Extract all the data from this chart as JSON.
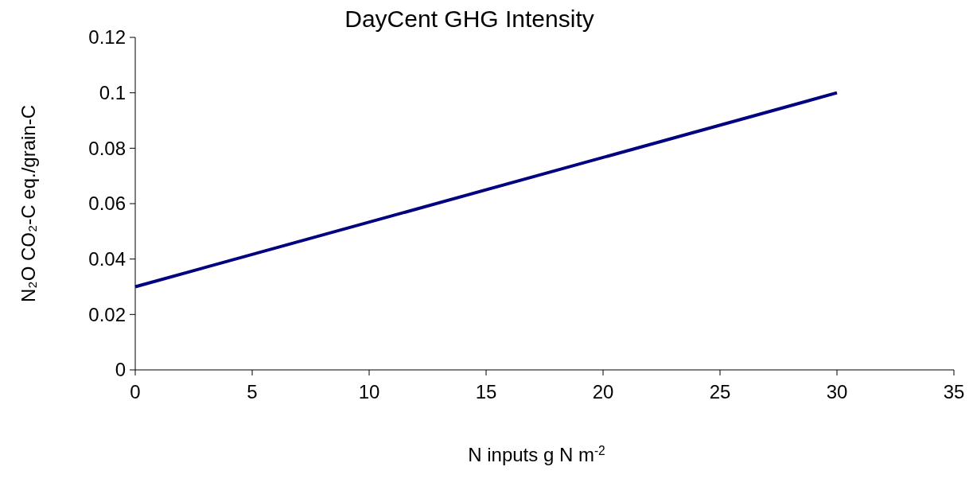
{
  "chart_data": {
    "type": "line",
    "title": "DayCent GHG Intensity",
    "xlabel": "N inputs g N m$^{-2}$",
    "ylabel": "N₂O CO₂-C eq./grain-C",
    "x": [
      0,
      30
    ],
    "series": [
      {
        "color": "#000080",
        "values": [
          0.03,
          0.1
        ]
      }
    ],
    "xlim": [
      0,
      35
    ],
    "xticks": [
      0,
      5,
      10,
      15,
      20,
      25,
      30,
      35
    ],
    "ylim": [
      0,
      0.12
    ],
    "yticks": [
      0,
      0.02,
      0.04,
      0.06,
      0.08,
      {
        "value": 0.1,
        "label": "0.1"
      },
      0.12
    ],
    "grid": false,
    "marker": "none",
    "line_style": "solid"
  }
}
